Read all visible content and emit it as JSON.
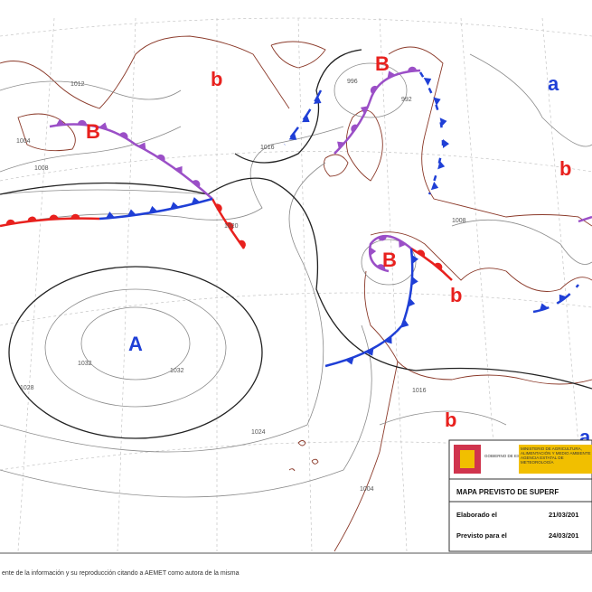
{
  "map": {
    "centers": [
      "b",
      "B",
      "a",
      "B",
      "b",
      "B",
      "b",
      "A",
      "b",
      "a"
    ],
    "isobar_labels": [
      "1012",
      "1004",
      "1008",
      "1016",
      "1020",
      "996",
      "992",
      "1032",
      "1032",
      "1028",
      "1024",
      "1016",
      "1008",
      "1004"
    ],
    "legend": {
      "government": "GOBIERNO DE ESPAÑA",
      "ministry": "MINISTERIO DE AGRICULTURA, ALIMENTACIÓN Y MEDIO AMBIENTE",
      "agency": "AGENCIA ESTATAL DE METEOROLOGÍA",
      "title": "MAPA PREVISTO DE SUPERF",
      "made_label": "Elaborado el",
      "made_date": "21/03/201",
      "valid_label": "Previsto para el",
      "valid_date": "24/03/201"
    },
    "footer": "ente de la información y su reproducción citando a AEMET como autora de la misma"
  }
}
